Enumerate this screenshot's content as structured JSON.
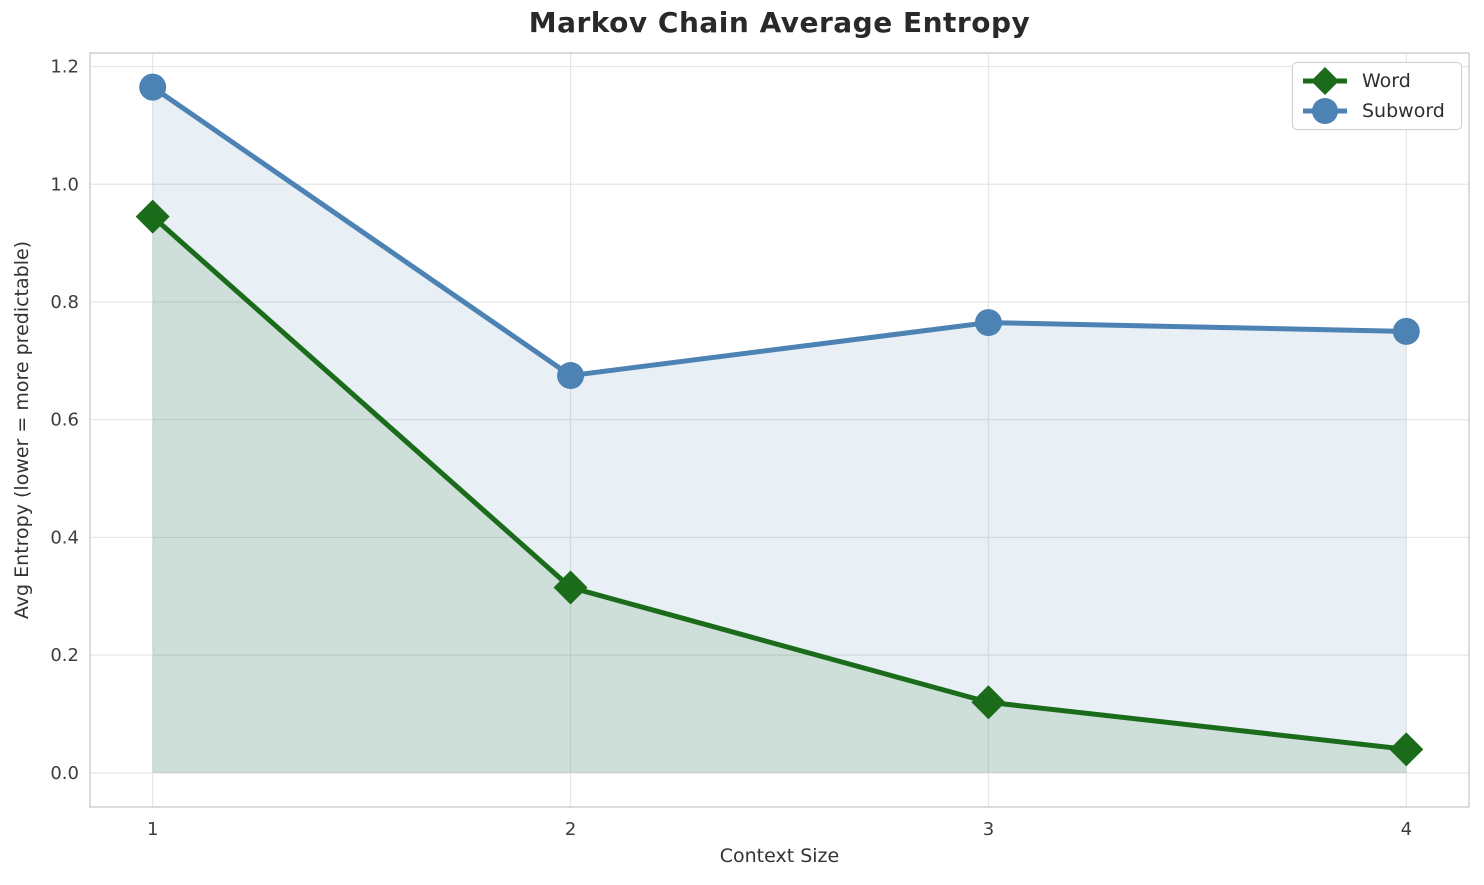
{
  "chart_data": {
    "type": "line",
    "title": "Markov Chain Average Entropy",
    "xlabel": "Context Size",
    "ylabel": "Avg Entropy (lower = more predictable)",
    "x": [
      1,
      2,
      3,
      4
    ],
    "series": [
      {
        "name": "Word",
        "values": [
          0.945,
          0.315,
          0.12,
          0.04
        ],
        "color": "#1a6b1a",
        "marker": "diamond",
        "fill_alpha": 0.12
      },
      {
        "name": "Subword",
        "values": [
          1.165,
          0.675,
          0.765,
          0.75
        ],
        "color": "#4d82b4",
        "marker": "circle",
        "fill_alpha": 0.13
      }
    ],
    "area_fill_baseline": 0,
    "xticks": [
      1,
      2,
      3,
      4
    ],
    "xtick_labels": [
      "1",
      "2",
      "3",
      "4"
    ],
    "yticks": [
      0,
      0.2,
      0.4,
      0.6,
      0.8,
      1.0,
      1.2
    ],
    "ytick_labels": [
      "0.0",
      "0.2",
      "0.4",
      "0.6",
      "0.8",
      "1.0",
      "1.2"
    ],
    "xlim": [
      0.85,
      4.15
    ],
    "ylim": [
      -0.058,
      1.223
    ],
    "grid": true,
    "legend": {
      "position": "upper right",
      "entries": [
        "Word",
        "Subword"
      ]
    },
    "colors": {
      "grid": "#e6e6e6",
      "spine": "#cccccc",
      "tick_text": "#3d3d3d",
      "label_text": "#333333",
      "title_text": "#292929",
      "background": "#ffffff"
    }
  }
}
